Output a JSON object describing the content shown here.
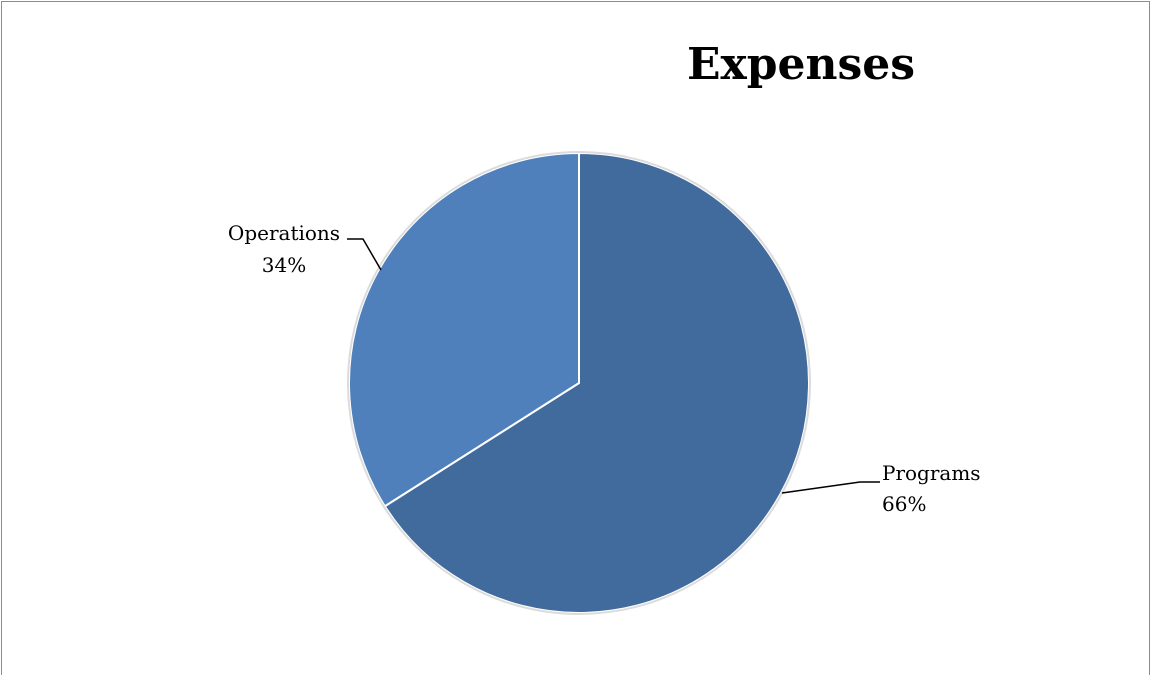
{
  "chart_data": {
    "type": "pie",
    "title": "Expenses",
    "slices": [
      {
        "label": "Programs",
        "value": 66,
        "value_text": "66%",
        "color": "#426b9d"
      },
      {
        "label": "Operations",
        "value": 34,
        "value_text": "34%",
        "color": "#4f80bb"
      }
    ],
    "start": "12 o'clock",
    "direction": "clockwise"
  }
}
